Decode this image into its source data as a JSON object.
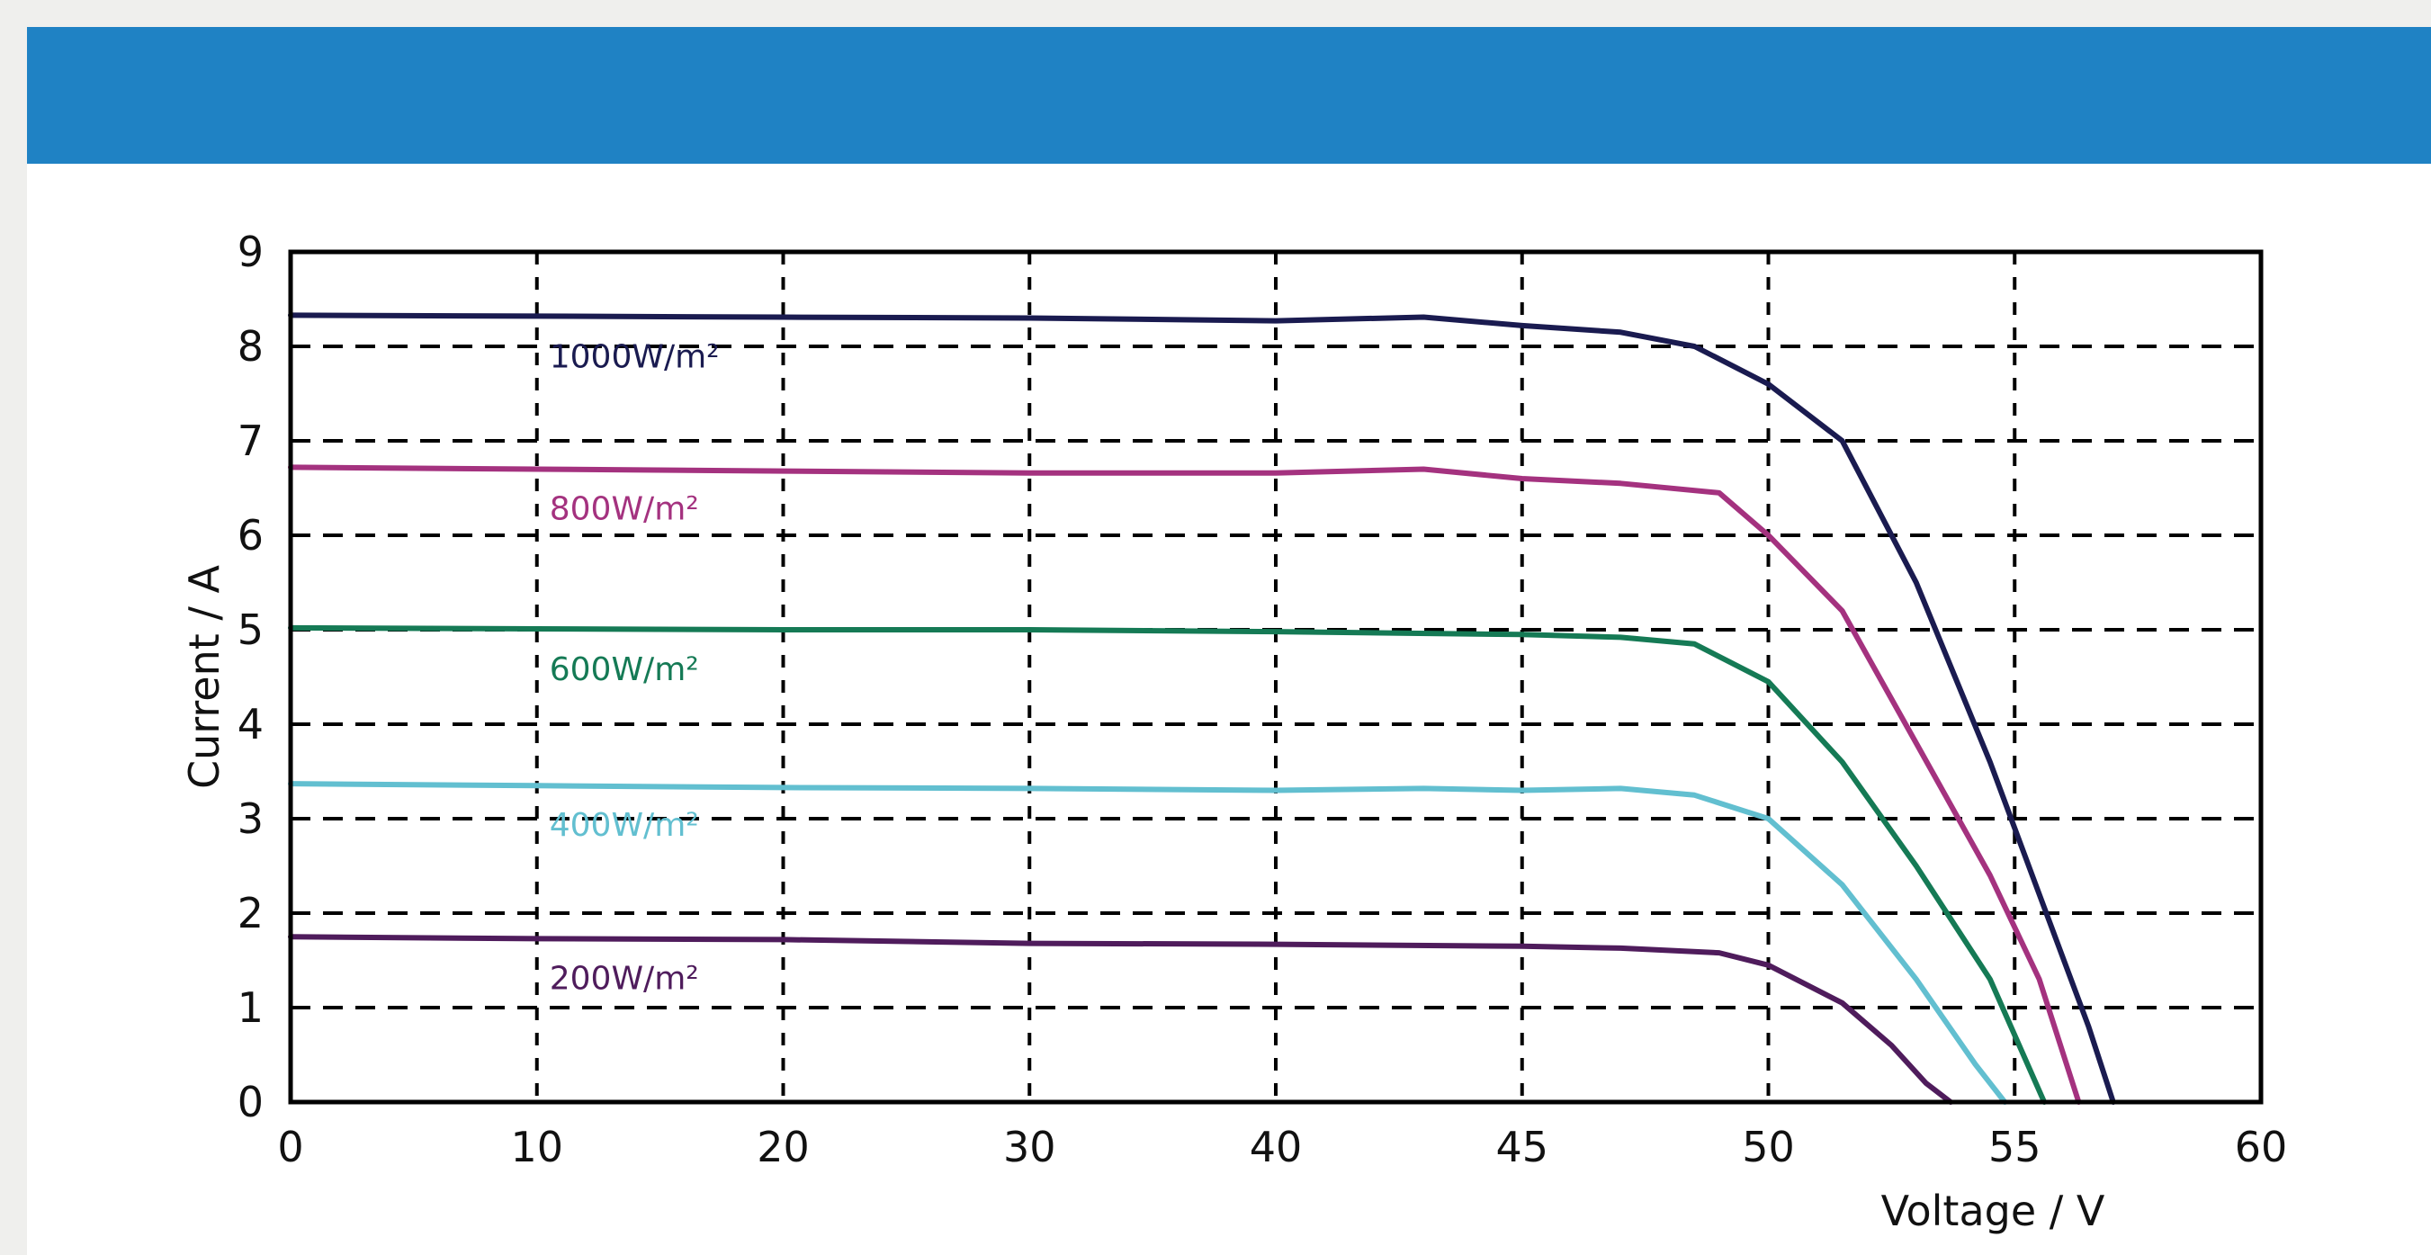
{
  "header": {
    "title": ""
  },
  "chart_data": {
    "type": "line",
    "title": "",
    "xlabel": "Voltage / V",
    "ylabel": "Current / A",
    "grid": true,
    "grid_style": "dashed",
    "x_ticks": [
      0,
      10,
      20,
      30,
      40,
      45,
      50,
      55,
      60
    ],
    "y_ticks": [
      0,
      1,
      2,
      3,
      4,
      5,
      6,
      7,
      8,
      9
    ],
    "ylim": [
      0,
      9
    ],
    "series": [
      {
        "name": "1000W/m²",
        "color": "#1a1b50",
        "points": [
          [
            0,
            8.33
          ],
          [
            10,
            8.32
          ],
          [
            20,
            8.31
          ],
          [
            30,
            8.3
          ],
          [
            40,
            8.27
          ],
          [
            43,
            8.31
          ],
          [
            45,
            8.22
          ],
          [
            47,
            8.15
          ],
          [
            48.5,
            8.0
          ],
          [
            50,
            7.6
          ],
          [
            51.5,
            7.0
          ],
          [
            53,
            5.5
          ],
          [
            54.5,
            3.6
          ],
          [
            55.5,
            2.2
          ],
          [
            56.5,
            0.8
          ],
          [
            57.0,
            0
          ]
        ]
      },
      {
        "name": "800W/m²",
        "color": "#a4327f",
        "points": [
          [
            0,
            6.72
          ],
          [
            10,
            6.7
          ],
          [
            20,
            6.68
          ],
          [
            30,
            6.66
          ],
          [
            40,
            6.66
          ],
          [
            43,
            6.7
          ],
          [
            45,
            6.6
          ],
          [
            47,
            6.55
          ],
          [
            49,
            6.45
          ],
          [
            50,
            6.0
          ],
          [
            51.5,
            5.2
          ],
          [
            53,
            3.8
          ],
          [
            54.5,
            2.4
          ],
          [
            55.5,
            1.3
          ],
          [
            56.3,
            0
          ]
        ]
      },
      {
        "name": "600W/m²",
        "color": "#157a55",
        "points": [
          [
            0,
            5.02
          ],
          [
            10,
            5.01
          ],
          [
            20,
            5.0
          ],
          [
            30,
            5.0
          ],
          [
            40,
            4.98
          ],
          [
            45,
            4.95
          ],
          [
            47,
            4.92
          ],
          [
            48.5,
            4.85
          ],
          [
            50,
            4.45
          ],
          [
            51.5,
            3.6
          ],
          [
            53,
            2.5
          ],
          [
            54.5,
            1.3
          ],
          [
            55.6,
            0
          ]
        ]
      },
      {
        "name": "400W/m²",
        "color": "#62bfd0",
        "points": [
          [
            0,
            3.37
          ],
          [
            10,
            3.35
          ],
          [
            20,
            3.33
          ],
          [
            30,
            3.32
          ],
          [
            40,
            3.3
          ],
          [
            43,
            3.32
          ],
          [
            45,
            3.3
          ],
          [
            47,
            3.32
          ],
          [
            48.5,
            3.25
          ],
          [
            50,
            3.0
          ],
          [
            51.5,
            2.3
          ],
          [
            53,
            1.3
          ],
          [
            54.2,
            0.4
          ],
          [
            54.8,
            0
          ]
        ]
      },
      {
        "name": "200W/m²",
        "color": "#4f1c5c",
        "points": [
          [
            0,
            1.75
          ],
          [
            10,
            1.73
          ],
          [
            20,
            1.72
          ],
          [
            30,
            1.68
          ],
          [
            40,
            1.67
          ],
          [
            45,
            1.65
          ],
          [
            47,
            1.63
          ],
          [
            49,
            1.58
          ],
          [
            50,
            1.45
          ],
          [
            51.5,
            1.05
          ],
          [
            52.5,
            0.6
          ],
          [
            53.2,
            0.2
          ],
          [
            53.7,
            0
          ]
        ]
      }
    ]
  }
}
